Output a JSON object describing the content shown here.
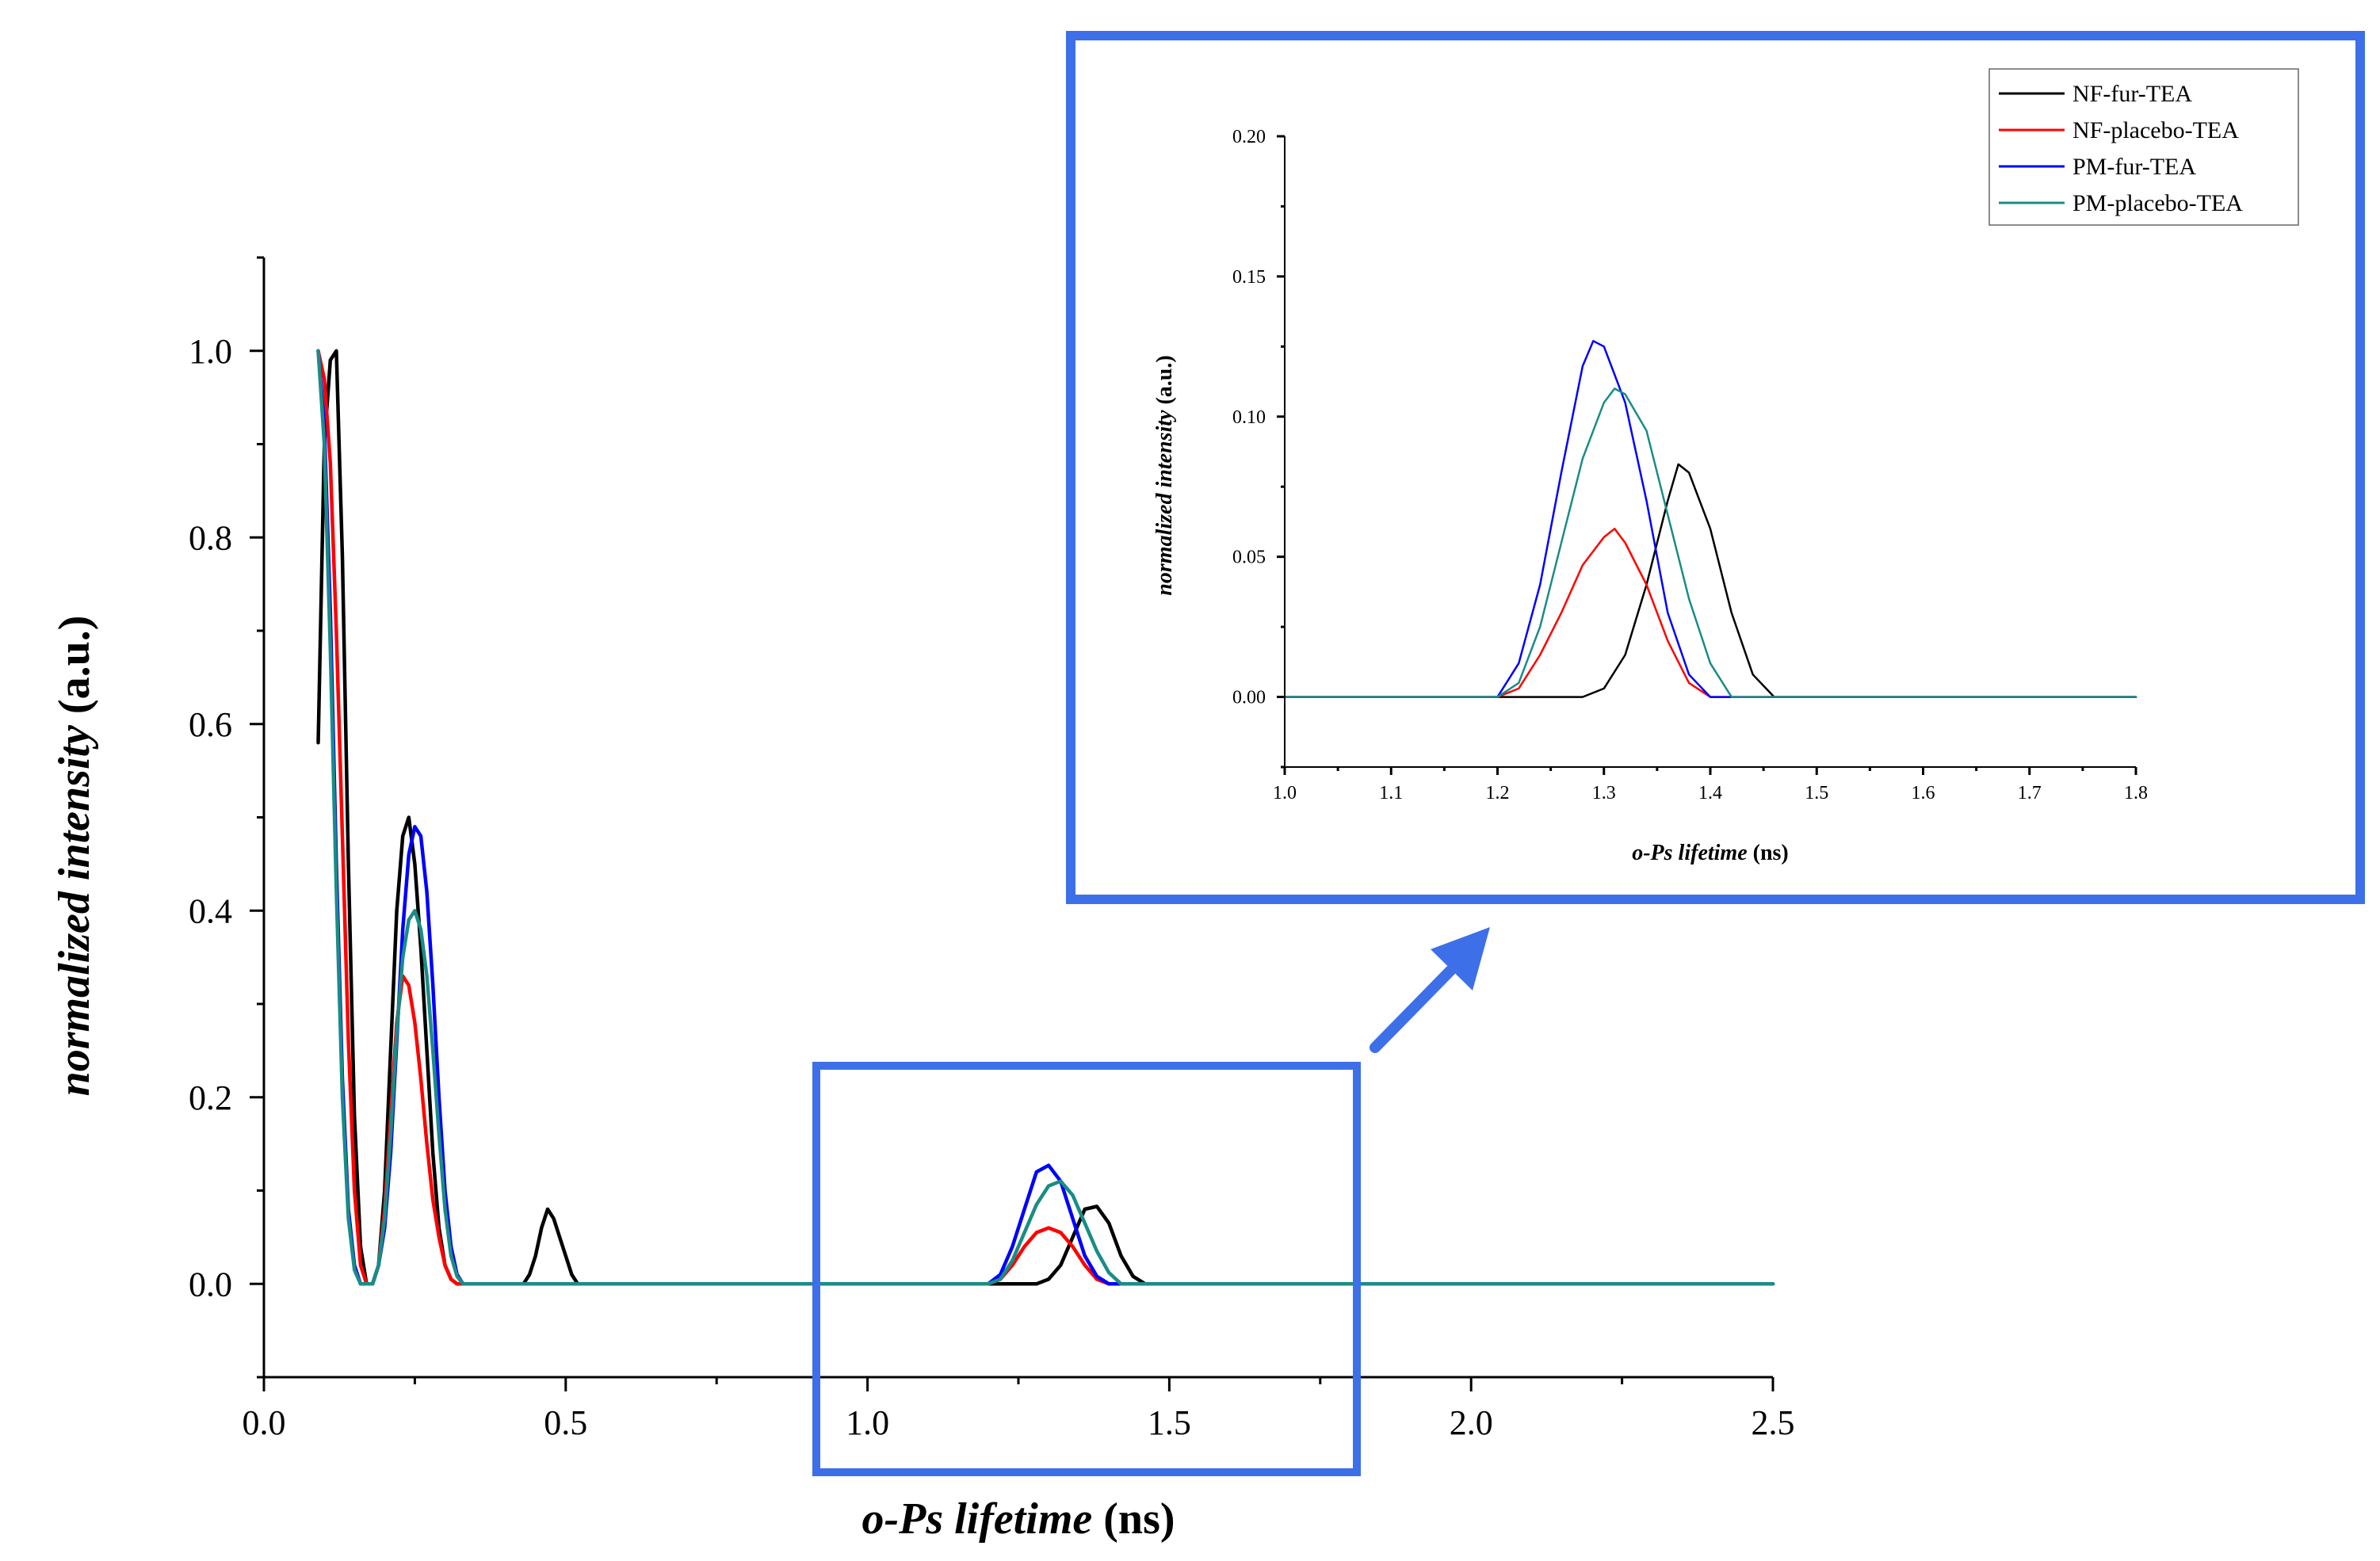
{
  "chart_data": [
    {
      "id": "main",
      "type": "line",
      "xlabel_italic": "o-Ps lifetime",
      "xlabel_unit": " (ns)",
      "ylabel_italic": "normalized intensity",
      "ylabel_unit": " (a.u.)",
      "xlim": [
        0.0,
        2.5
      ],
      "ylim": [
        -0.1,
        1.1
      ],
      "xticks": [
        0.0,
        0.5,
        1.0,
        1.5,
        2.0,
        2.5
      ],
      "xtick_labels": [
        "0.0",
        "0.5",
        "1.0",
        "1.5",
        "2.0",
        "2.5"
      ],
      "yticks": [
        0.0,
        0.2,
        0.4,
        0.6,
        0.8,
        1.0
      ],
      "ytick_labels": [
        "0.0",
        "0.2",
        "0.4",
        "0.6",
        "0.8",
        "1.0"
      ],
      "series": [
        {
          "name": "NF-fur-TEA",
          "color": "#000000",
          "x": [
            0.09,
            0.1,
            0.11,
            0.12,
            0.13,
            0.14,
            0.15,
            0.16,
            0.17,
            0.18,
            0.19,
            0.2,
            0.21,
            0.22,
            0.23,
            0.24,
            0.25,
            0.26,
            0.27,
            0.28,
            0.29,
            0.3,
            0.31,
            0.32,
            0.33,
            0.34,
            0.35,
            0.36,
            0.37,
            0.38,
            0.39,
            0.4,
            0.41,
            0.42,
            0.43,
            0.44,
            0.45,
            0.46,
            0.47,
            0.48,
            0.49,
            0.5,
            0.51,
            0.52,
            0.53,
            0.55,
            0.6,
            0.8,
            1.0,
            1.2,
            1.26,
            1.28,
            1.3,
            1.32,
            1.34,
            1.36,
            1.38,
            1.4,
            1.42,
            1.44,
            1.46,
            1.5,
            1.8,
            2.0,
            2.2,
            2.5
          ],
          "y": [
            0.58,
            0.9,
            0.99,
            1.0,
            0.78,
            0.45,
            0.18,
            0.04,
            0.0,
            0.0,
            0.02,
            0.1,
            0.25,
            0.4,
            0.48,
            0.5,
            0.45,
            0.36,
            0.25,
            0.14,
            0.06,
            0.02,
            0.005,
            0.0,
            0.0,
            0.0,
            0.0,
            0.0,
            0.0,
            0.0,
            0.0,
            0.0,
            0.0,
            0.0,
            0.0,
            0.01,
            0.03,
            0.06,
            0.08,
            0.07,
            0.05,
            0.03,
            0.01,
            0.0,
            0.0,
            0.0,
            0.0,
            0.0,
            0.0,
            0.0,
            0.0,
            0.0,
            0.005,
            0.02,
            0.05,
            0.08,
            0.083,
            0.065,
            0.03,
            0.008,
            0.0,
            0.0,
            0.0,
            0.0,
            0.0,
            0.0
          ]
        },
        {
          "name": "NF-placebo-TEA",
          "color": "#ff0000",
          "x": [
            0.09,
            0.1,
            0.11,
            0.12,
            0.13,
            0.14,
            0.15,
            0.16,
            0.17,
            0.18,
            0.19,
            0.2,
            0.21,
            0.22,
            0.23,
            0.24,
            0.25,
            0.26,
            0.27,
            0.28,
            0.29,
            0.3,
            0.31,
            0.32,
            0.33,
            0.34,
            0.35,
            0.36,
            0.37,
            0.38,
            0.39,
            0.4,
            0.6,
            0.8,
            1.0,
            1.2,
            1.22,
            1.24,
            1.26,
            1.28,
            1.3,
            1.32,
            1.34,
            1.36,
            1.38,
            1.4,
            1.42,
            1.5,
            1.8,
            2.0,
            2.2,
            2.5
          ],
          "y": [
            1.0,
            0.97,
            0.88,
            0.7,
            0.48,
            0.26,
            0.1,
            0.02,
            0.0,
            0.0,
            0.02,
            0.08,
            0.18,
            0.28,
            0.33,
            0.32,
            0.28,
            0.22,
            0.15,
            0.09,
            0.05,
            0.02,
            0.005,
            0.0,
            0.0,
            0.0,
            0.0,
            0.0,
            0.0,
            0.0,
            0.0,
            0.0,
            0.0,
            0.0,
            0.0,
            0.0,
            0.005,
            0.02,
            0.04,
            0.055,
            0.06,
            0.055,
            0.04,
            0.02,
            0.005,
            0.0,
            0.0,
            0.0,
            0.0,
            0.0,
            0.0,
            0.0
          ]
        },
        {
          "name": "PM-fur-TEA",
          "color": "#0000ff",
          "x": [
            0.09,
            0.1,
            0.11,
            0.12,
            0.13,
            0.14,
            0.15,
            0.16,
            0.17,
            0.18,
            0.19,
            0.2,
            0.21,
            0.22,
            0.23,
            0.24,
            0.25,
            0.26,
            0.27,
            0.28,
            0.29,
            0.3,
            0.31,
            0.32,
            0.33,
            0.34,
            0.35,
            0.36,
            0.37,
            0.38,
            0.39,
            0.4,
            0.6,
            0.8,
            1.0,
            1.2,
            1.22,
            1.24,
            1.26,
            1.28,
            1.3,
            1.32,
            1.34,
            1.36,
            1.38,
            1.4,
            1.5,
            1.8,
            2.0,
            2.2,
            2.5
          ],
          "y": [
            1.0,
            0.92,
            0.72,
            0.45,
            0.22,
            0.08,
            0.02,
            0.0,
            0.0,
            0.0,
            0.02,
            0.06,
            0.14,
            0.26,
            0.38,
            0.46,
            0.49,
            0.48,
            0.42,
            0.32,
            0.2,
            0.1,
            0.04,
            0.01,
            0.0,
            0.0,
            0.0,
            0.0,
            0.0,
            0.0,
            0.0,
            0.0,
            0.0,
            0.0,
            0.0,
            0.0,
            0.01,
            0.04,
            0.08,
            0.12,
            0.127,
            0.11,
            0.07,
            0.03,
            0.008,
            0.0,
            0.0,
            0.0,
            0.0,
            0.0,
            0.0
          ]
        },
        {
          "name": "PM-placebo-TEA",
          "color": "#1a8c86",
          "x": [
            0.09,
            0.1,
            0.11,
            0.12,
            0.13,
            0.14,
            0.15,
            0.16,
            0.17,
            0.18,
            0.19,
            0.2,
            0.21,
            0.22,
            0.23,
            0.24,
            0.25,
            0.26,
            0.27,
            0.28,
            0.29,
            0.3,
            0.31,
            0.32,
            0.33,
            0.34,
            0.35,
            0.36,
            0.37,
            0.38,
            0.39,
            0.4,
            0.6,
            0.8,
            1.0,
            1.2,
            1.22,
            1.24,
            1.26,
            1.28,
            1.3,
            1.32,
            1.34,
            1.36,
            1.38,
            1.4,
            1.42,
            1.5,
            1.8,
            2.0,
            2.2,
            2.5
          ],
          "y": [
            1.0,
            0.9,
            0.68,
            0.42,
            0.2,
            0.07,
            0.015,
            0.0,
            0.0,
            0.0,
            0.02,
            0.07,
            0.16,
            0.27,
            0.35,
            0.39,
            0.4,
            0.38,
            0.33,
            0.25,
            0.16,
            0.08,
            0.03,
            0.008,
            0.0,
            0.0,
            0.0,
            0.0,
            0.0,
            0.0,
            0.0,
            0.0,
            0.0,
            0.0,
            0.0,
            0.0,
            0.005,
            0.025,
            0.055,
            0.085,
            0.105,
            0.11,
            0.095,
            0.065,
            0.035,
            0.012,
            0.0,
            0.0,
            0.0,
            0.0,
            0.0,
            0.0
          ]
        }
      ]
    },
    {
      "id": "inset",
      "type": "line",
      "xlabel_italic": "o-Ps lifetime",
      "xlabel_unit": " (ns)",
      "ylabel_italic": "normalized intensity",
      "ylabel_unit": " (a.u.)",
      "xlim": [
        1.0,
        1.8
      ],
      "ylim": [
        -0.025,
        0.2
      ],
      "xticks": [
        1.0,
        1.1,
        1.2,
        1.3,
        1.4,
        1.5,
        1.6,
        1.7,
        1.8
      ],
      "xtick_labels": [
        "1.0",
        "1.1",
        "1.2",
        "1.3",
        "1.4",
        "1.5",
        "1.6",
        "1.7",
        "1.8"
      ],
      "yticks": [
        0.0,
        0.05,
        0.1,
        0.15,
        0.2
      ],
      "ytick_labels": [
        "0.00",
        "0.05",
        "0.10",
        "0.15",
        "0.20"
      ],
      "legend_position": "top-right",
      "series": [
        {
          "name": "NF-fur-TEA",
          "color": "#000000",
          "x": [
            1.0,
            1.2,
            1.24,
            1.26,
            1.28,
            1.3,
            1.32,
            1.34,
            1.36,
            1.37,
            1.38,
            1.4,
            1.42,
            1.44,
            1.46,
            1.5,
            1.8
          ],
          "y": [
            0.0,
            0.0,
            0.0,
            0.0,
            0.0,
            0.003,
            0.015,
            0.04,
            0.07,
            0.083,
            0.08,
            0.06,
            0.03,
            0.008,
            0.0,
            0.0,
            0.0
          ]
        },
        {
          "name": "NF-placebo-TEA",
          "color": "#ff0000",
          "x": [
            1.0,
            1.2,
            1.22,
            1.24,
            1.26,
            1.28,
            1.3,
            1.31,
            1.32,
            1.34,
            1.36,
            1.38,
            1.4,
            1.42,
            1.5,
            1.8
          ],
          "y": [
            0.0,
            0.0,
            0.003,
            0.015,
            0.03,
            0.047,
            0.057,
            0.06,
            0.055,
            0.04,
            0.02,
            0.005,
            0.0,
            0.0,
            0.0,
            0.0
          ]
        },
        {
          "name": "PM-fur-TEA",
          "color": "#0000ff",
          "x": [
            1.0,
            1.2,
            1.22,
            1.24,
            1.26,
            1.28,
            1.29,
            1.3,
            1.32,
            1.34,
            1.36,
            1.38,
            1.4,
            1.5,
            1.8
          ],
          "y": [
            0.0,
            0.0,
            0.012,
            0.04,
            0.08,
            0.118,
            0.127,
            0.125,
            0.105,
            0.07,
            0.03,
            0.008,
            0.0,
            0.0,
            0.0
          ]
        },
        {
          "name": "PM-placebo-TEA",
          "color": "#1a8c86",
          "x": [
            1.0,
            1.2,
            1.22,
            1.24,
            1.26,
            1.28,
            1.3,
            1.31,
            1.32,
            1.34,
            1.36,
            1.38,
            1.4,
            1.42,
            1.5,
            1.8
          ],
          "y": [
            0.0,
            0.0,
            0.005,
            0.025,
            0.055,
            0.085,
            0.105,
            0.11,
            0.108,
            0.095,
            0.065,
            0.035,
            0.012,
            0.0,
            0.0,
            0.0
          ]
        }
      ]
    }
  ],
  "annotations": {
    "zoom_box_color": "#3d6fe8",
    "zoom_x_range": [
      0.91,
      1.81
    ]
  }
}
